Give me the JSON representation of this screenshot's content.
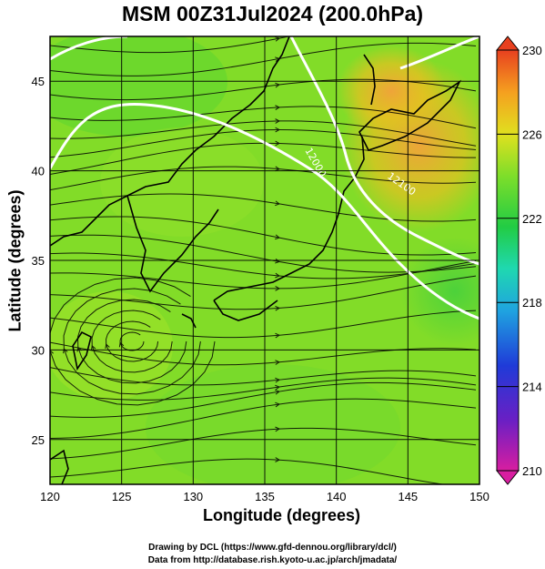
{
  "title": "MSM 00Z31Jul2024 (200.0hPa)",
  "xlabel": "Longitude (degrees)",
  "ylabel": "Latitude  (degrees)",
  "credits": [
    "Drawing by DCL (https://www.gfd-dennou.org/library/dcl/)",
    "Data from http://database.rish.kyoto-u.ac.jp/arch/jmadata/"
  ],
  "map": {
    "lon_range": [
      120,
      150
    ],
    "lat_range": [
      22.5,
      47.5
    ],
    "lon_ticks": [
      "120",
      "125",
      "130",
      "135",
      "140",
      "145",
      "150"
    ],
    "lat_ticks": [
      "25",
      "30",
      "35",
      "40",
      "45"
    ],
    "graticule_step_deg": 5,
    "contour_labels": [
      "12000",
      "12100"
    ],
    "colorbar": {
      "ticks": [
        "210",
        "214",
        "218",
        "222",
        "226",
        "230"
      ],
      "range": [
        210,
        230
      ],
      "colors": [
        "#d81ea0",
        "#6a1fc4",
        "#1f3bd8",
        "#1fa3e0",
        "#1fd8b0",
        "#22cc44",
        "#7dde2a",
        "#e0e01f",
        "#f5a01f",
        "#e8401f"
      ]
    },
    "field_colors": {
      "low": "#3fcf3f",
      "mid": "#86e028",
      "high": "#e8c020",
      "peak": "#f2a23a"
    }
  }
}
